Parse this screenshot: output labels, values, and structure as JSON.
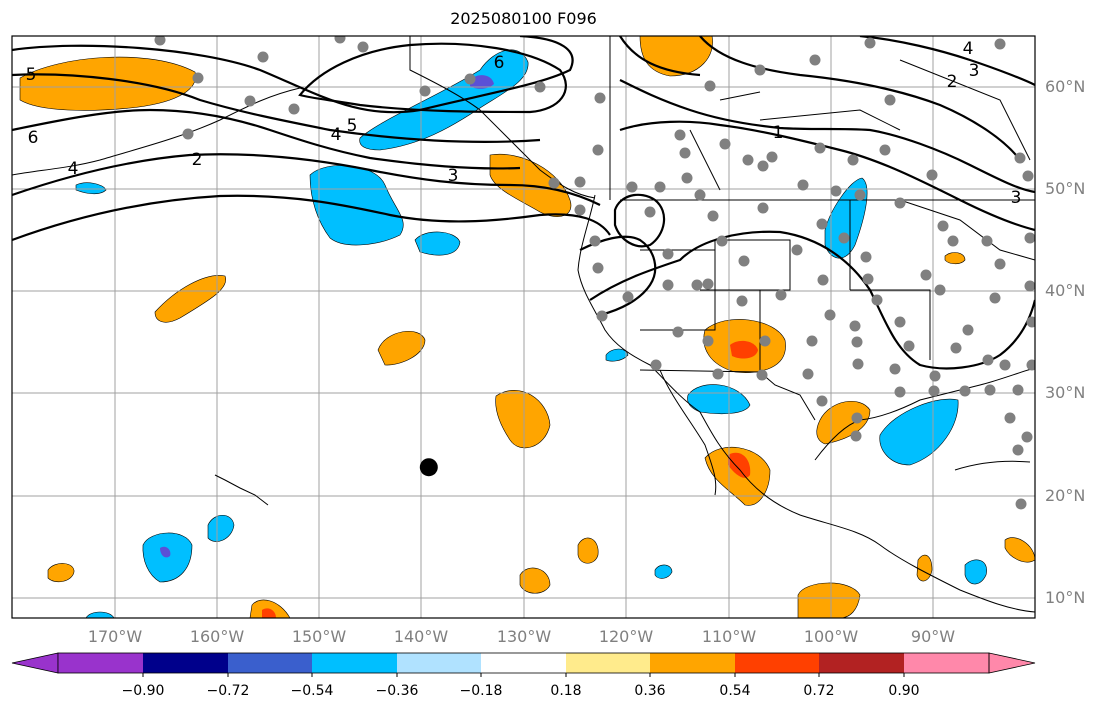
{
  "map": {
    "title": "2025080100 F096",
    "lat_labels": [
      "60°N",
      "50°N",
      "40°N",
      "30°N",
      "20°N",
      "10°N"
    ],
    "lon_labels": [
      "170°W",
      "160°W",
      "150°W",
      "140°W",
      "130°W",
      "120°W",
      "110°W",
      "100°W",
      "90°W"
    ],
    "contour_labels": [
      "5",
      "6",
      "4",
      "2",
      "5",
      "4",
      "6",
      "3",
      "3",
      "2",
      "1",
      "4",
      "3"
    ],
    "station_marker": {
      "lon": -139.3,
      "lat": 22.8,
      "color": "#000000"
    }
  },
  "colorbar": {
    "ticks": [
      "−0.90",
      "−0.72",
      "−0.54",
      "−0.36",
      "−0.18",
      "0.18",
      "0.36",
      "0.54",
      "0.72",
      "0.90"
    ],
    "colors": [
      "#9933cc",
      "#00008b",
      "#3a5fcd",
      "#00bfff",
      "#b0e2ff",
      "#ffffff",
      "#ffeb8c",
      "#ffa500",
      "#ff4000",
      "#b22222",
      "#ff88aa"
    ]
  },
  "style": {
    "grid_color": "#a0a0a0",
    "dot_color": "#808080",
    "orange": "#ffa500",
    "red": "#ff4000",
    "blue": "#00bfff",
    "purple": "#5b50d6"
  }
}
